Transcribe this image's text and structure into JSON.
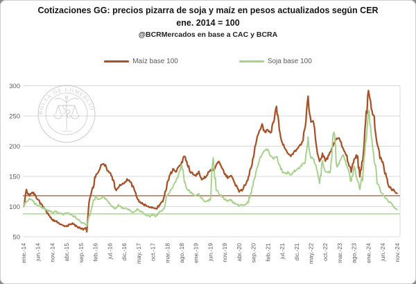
{
  "header": {
    "title_line1": "Cotizaciones GG: precios pizarra de soja y maíz en pesos actualizados según CER",
    "title_line2": "ene. 2014 = 100",
    "subtitle": "@BCRMercados en base a CAC y BCRA"
  },
  "watermark": {
    "text": "BOLSA DE COMERCIO DE ROSARIO"
  },
  "chart_data": {
    "type": "line",
    "title": "Cotizaciones GG: precios pizarra de soja y maíz en pesos actualizados según CER",
    "subtitle": "ene. 2014 = 100",
    "source_note": "@BCRMercados en base a CAC y BCRA",
    "grid": "horizontal-only",
    "legend_position": "top",
    "x_unit": "month",
    "x_start": "ene.-14",
    "x_end": "nov.-24",
    "x_tick_labels": [
      "ene.-14",
      "jun.-14",
      "nov.-14",
      "abr.-15",
      "sep.-15",
      "feb.-16",
      "jul.-16",
      "dic.-16",
      "may.-17",
      "oct.-17",
      "mar.-18",
      "ago.-18",
      "ene.-19",
      "jun.-19",
      "nov.-19",
      "abr.-20",
      "sep.-20",
      "feb.-21",
      "jul.-21",
      "dic.-21",
      "may.-22",
      "oct.-22",
      "mar.-23",
      "ago.-23",
      "ene.-24",
      "jun.-24",
      "nov.-24"
    ],
    "months_per_tick": 5,
    "y_ticks": [
      50,
      100,
      150,
      200,
      250,
      300
    ],
    "ylim": [
      50,
      310
    ],
    "series": [
      {
        "name": "Maíz base 100",
        "color": "#A5532B",
        "values": [
          100,
          126,
          118,
          124,
          119,
          112,
          105,
          98,
          92,
          85,
          78,
          76,
          74,
          71,
          69,
          67,
          70,
          72,
          69,
          65,
          64,
          62,
          65,
          112,
          128,
          150,
          158,
          168,
          172,
          162,
          156,
          148,
          127,
          133,
          137,
          139,
          146,
          142,
          133,
          121,
          110,
          106,
          103,
          100,
          98,
          99,
          96,
          101,
          106,
          116,
          140,
          152,
          163,
          158,
          167,
          172,
          185,
          172,
          158,
          154,
          152,
          157,
          144,
          148,
          153,
          162,
          158,
          170,
          175,
          166,
          154,
          148,
          151,
          145,
          133,
          125,
          128,
          136,
          143,
          162,
          182,
          207,
          226,
          236,
          222,
          228,
          221,
          241,
          264,
          228,
          205,
          196,
          189,
          184,
          190,
          193,
          201,
          206,
          232,
          277,
          241,
          243,
          196,
          174,
          186,
          176,
          182,
          191,
          205,
          212,
          213,
          196,
          190,
          174,
          160,
          178,
          186,
          152,
          180,
          235,
          294,
          262,
          246,
          208,
          182,
          170,
          152,
          136,
          128,
          127,
          122
        ]
      },
      {
        "name": "Soja base 100",
        "color": "#A9D08E",
        "values": [
          100,
          108,
          112,
          110,
          105,
          102,
          100,
          97,
          94,
          92,
          90,
          92,
          90,
          88,
          87,
          90,
          88,
          85,
          83,
          78,
          74,
          72,
          70,
          88,
          105,
          117,
          112,
          114,
          116,
          110,
          104,
          100,
          97,
          102,
          99,
          97,
          96,
          94,
          91,
          94,
          96,
          91,
          87,
          85,
          84,
          87,
          84,
          89,
          93,
          99,
          119,
          126,
          133,
          142,
          152,
          176,
          140,
          128,
          124,
          121,
          118,
          121,
          114,
          109,
          108,
          115,
          183,
          128,
          121,
          118,
          112,
          109,
          111,
          107,
          104,
          101,
          103,
          103,
          106,
          121,
          141,
          157,
          177,
          188,
          192,
          196,
          184,
          180,
          183,
          171,
          157,
          154,
          156,
          152,
          158,
          161,
          164,
          170,
          173,
          212,
          181,
          178,
          164,
          138,
          174,
          159,
          155,
          160,
          232,
          166,
          172,
          186,
          176,
          161,
          141,
          168,
          148,
          131,
          152,
          206,
          265,
          215,
          182,
          140,
          128,
          120,
          114,
          109,
          104,
          100,
          95
        ]
      }
    ],
    "reference_lines": [
      {
        "series": "Maíz base 100",
        "value": 118,
        "color": "#A5532B"
      },
      {
        "series": "Soja base 100",
        "value": 88,
        "color": "#A9D08E"
      }
    ]
  }
}
